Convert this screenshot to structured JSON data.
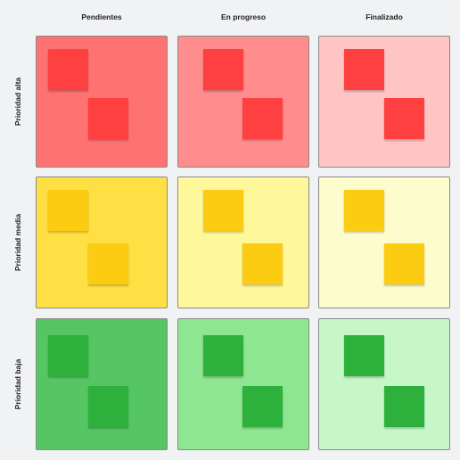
{
  "columns": [
    "Pendientes",
    "En progreso",
    "Finalizado"
  ],
  "rows": [
    {
      "label": "Prioridad alta",
      "note_color": "#ff4040",
      "cell_colors": [
        "#ff7272",
        "#ff8d8d",
        "#ffc4c4"
      ]
    },
    {
      "label": "Prioridad media",
      "note_color": "#fccc12",
      "cell_colors": [
        "#ffe044",
        "#fff79c",
        "#fdfccc"
      ]
    },
    {
      "label": "Prioridad baja",
      "note_color": "#2db13c",
      "cell_colors": [
        "#56c664",
        "#8fe691",
        "#c7f7c9"
      ]
    }
  ]
}
